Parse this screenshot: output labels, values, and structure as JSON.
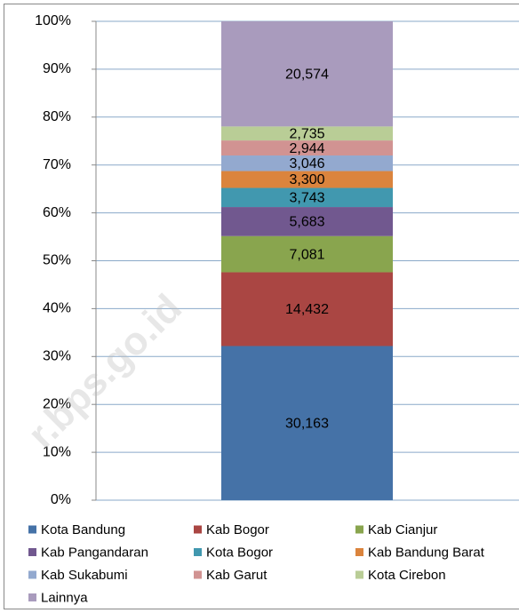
{
  "chart_data": {
    "type": "stacked_percent_bar",
    "categories": [
      null
    ],
    "series": [
      {
        "name": "Kota Bandung",
        "color": "#4572a7",
        "values": [
          30163
        ],
        "value_labels": [
          "30,163"
        ]
      },
      {
        "name": "Kab Bogor",
        "color": "#aa4643",
        "values": [
          14432
        ],
        "value_labels": [
          "14,432"
        ]
      },
      {
        "name": "Kab Cianjur",
        "color": "#89a54e",
        "values": [
          7081
        ],
        "value_labels": [
          "7,081"
        ]
      },
      {
        "name": "Kab Pangandaran",
        "color": "#71588f",
        "values": [
          5683
        ],
        "value_labels": [
          "5,683"
        ]
      },
      {
        "name": "Kota Bogor",
        "color": "#4198af",
        "values": [
          3743
        ],
        "value_labels": [
          "3,743"
        ]
      },
      {
        "name": "Kab Bandung Barat",
        "color": "#db843d",
        "values": [
          3300
        ],
        "value_labels": [
          "3,300"
        ]
      },
      {
        "name": "Kab Sukabumi",
        "color": "#93a9cf",
        "values": [
          3046
        ],
        "value_labels": [
          "3,046"
        ]
      },
      {
        "name": "Kab Garut",
        "color": "#d19392",
        "values": [
          2944
        ],
        "value_labels": [
          "2,944"
        ]
      },
      {
        "name": "Kota Cirebon",
        "color": "#b9cd96",
        "values": [
          2735
        ],
        "value_labels": [
          "2,735"
        ]
      },
      {
        "name": "Lainnya",
        "color": "#a99bbd",
        "values": [
          20574
        ],
        "value_labels": [
          "20,574"
        ]
      }
    ],
    "ylim": [
      0,
      100
    ],
    "yticks": [
      {
        "value": 0,
        "label": "0%"
      },
      {
        "value": 10,
        "label": "10%"
      },
      {
        "value": 20,
        "label": "20%"
      },
      {
        "value": 30,
        "label": "30%"
      },
      {
        "value": 40,
        "label": "40%"
      },
      {
        "value": 50,
        "label": "50%"
      },
      {
        "value": 60,
        "label": "60%"
      },
      {
        "value": 70,
        "label": "70%"
      },
      {
        "value": 80,
        "label": "80%"
      },
      {
        "value": 90,
        "label": "90%"
      },
      {
        "value": 100,
        "label": "100%"
      }
    ],
    "grid": true,
    "legend": "bottom",
    "watermark": "r.bps.go.id"
  }
}
